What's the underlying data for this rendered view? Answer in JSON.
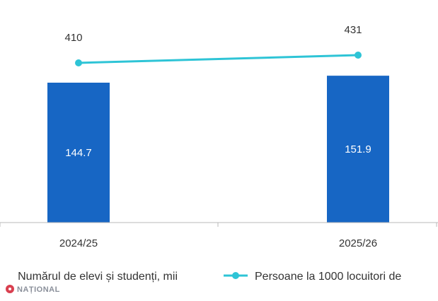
{
  "chart_data": {
    "type": "bar",
    "categories": [
      "2024/25",
      "2025/26"
    ],
    "series": [
      {
        "name": "Numărul de elevi și studenți, mii",
        "kind": "bar",
        "values": [
          144.7,
          151.9
        ],
        "color": "#1766c4"
      },
      {
        "name": "Persoane la 1000 locuitori de",
        "kind": "line",
        "values": [
          410,
          431
        ],
        "color": "#2ec4d6"
      }
    ],
    "legend_placement": "bottom",
    "grid": false
  },
  "logo": {
    "text": "NAȚIONAL",
    "color": "#d94050"
  }
}
